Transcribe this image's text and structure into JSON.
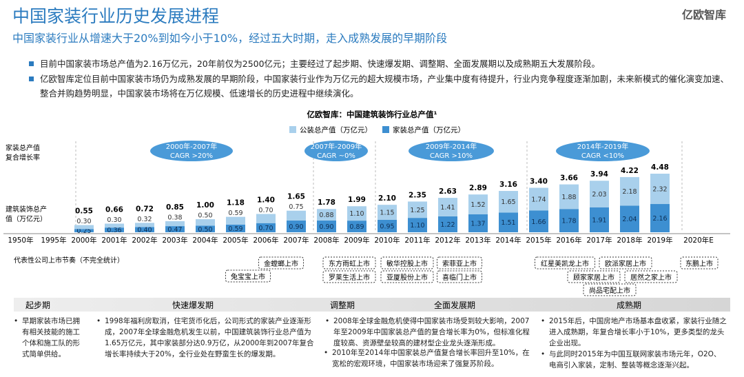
{
  "header": {
    "title": "中国家装行业历史发展进程",
    "subtitle": "中国家装行业从增速大于20%到如今小于10%，经过五大时期，走入成熟发展的早期阶段",
    "logo": "亿欧智库"
  },
  "bullets": [
    "目前中国家装市场总产值为2.16万亿元，20年前仅为2500亿元；主要经过了起步期、快速爆发期、调整期、全面发展期以及成熟期五大发展阶段。",
    "亿欧智库定位目前中国家装市场仍为成熟发展的早期阶段，中国家装行业作为万亿元的超大规模市场，产业集中度有待提升，行业内竞争程度逐渐加剧，未来新模式的催化演变加速、整合并购趋势明显，中国家装市场将在万亿规模、低速增长的历史进程中继续演化。"
  ],
  "chart_data": {
    "type": "stacked-bar",
    "title": "亿欧智库：中国建筑装饰行业总产值¹",
    "categories": [
      "1950年",
      "1995年",
      "2000年",
      "2001年",
      "2002年",
      "2003年",
      "2004年",
      "2005年",
      "2006年",
      "2007年",
      "2008年",
      "2009年",
      "2010年",
      "2011年",
      "2012年",
      "2013年",
      "2014年",
      "2015年",
      "2016年",
      "2017年",
      "2018年",
      "2019年",
      "2020年E"
    ],
    "series": [
      {
        "name": "公装总产值（万亿元）",
        "color": "#a9d0ec",
        "values": [
          null,
          null,
          0.3,
          0.3,
          0.32,
          0.38,
          0.5,
          0.59,
          0.7,
          0.75,
          0.88,
          1.1,
          1.15,
          1.25,
          1.41,
          1.52,
          1.65,
          1.74,
          1.88,
          2.03,
          2.18,
          2.32,
          null
        ],
        "value_labels": [
          null,
          null,
          "0.30",
          "0.30",
          "0.32",
          "0.38",
          "0.50",
          "0.59",
          "0.70",
          "0.75",
          "0.88",
          "1.10",
          "1.15",
          "1.25",
          "1.41",
          "1.52",
          "1.65",
          "1.74",
          "1.88",
          "2.03",
          "2.18",
          "2.32",
          null
        ]
      },
      {
        "name": "家装总产值（万亿元）",
        "color": "#3d8fd1",
        "values": [
          null,
          null,
          0.25,
          0.36,
          0.4,
          0.47,
          0.5,
          0.59,
          0.7,
          0.9,
          0.9,
          0.89,
          0.95,
          1.1,
          1.22,
          1.37,
          1.51,
          1.66,
          1.78,
          1.91,
          2.04,
          2.16,
          null
        ],
        "value_labels": [
          null,
          null,
          "0.25",
          "0.36",
          "0.40",
          "0.47",
          "0.50",
          "0.59",
          "0.70",
          "0.90",
          "0.90",
          "0.89",
          "0.95",
          "1.10",
          "1.22",
          "1.37",
          "1.51",
          "1.66",
          "1.78",
          "1.91",
          "2.04",
          "2.16",
          null
        ]
      }
    ],
    "totals": [
      null,
      null,
      "0.55",
      "0.66",
      "0.72",
      "0.85",
      "1.00",
      "1.18",
      "1.40",
      "1.65",
      "1.78",
      "1.99",
      "2.10",
      "2.35",
      "2.63",
      "2.89",
      "3.16",
      "3.40",
      "3.66",
      "3.94",
      "4.22",
      "4.48",
      null
    ],
    "row_labels": [
      "家装总产值复合增长率",
      "建筑装饰总产值（万亿元）"
    ],
    "cagr": [
      {
        "period": "2000年-2007年",
        "label": "CAGR >20%"
      },
      {
        "period": "2007年-2009年",
        "label": "CAGR ~0%"
      },
      {
        "period": "2009年-2014年",
        "label": "CAGR >10%"
      },
      {
        "period": "2014年-2019年",
        "label": "CAGR <10%"
      }
    ]
  },
  "listings": {
    "title": "代表性公司上市节奏（不完全统计）",
    "companies": [
      "金螳螂上市",
      "兔宝宝上市",
      "东方雨虹上市",
      "罗莱生活上市",
      "敏华控股上市",
      "亚厦股份上市",
      "索菲亚上市",
      "喜临门上市",
      "红星美凯龙上市",
      "顾家家居上市",
      "欧派家居上市",
      "居然之家上市",
      "尚品宅配上市",
      "东鹏上市"
    ]
  },
  "phases": [
    {
      "name": "起步期",
      "texts": [
        "早期家装市场已拥有相关技能的施工个体和施工队的形式简单供给。"
      ]
    },
    {
      "name": "快速爆发期",
      "texts": [
        "1998年福利房取消，住宅货币化后，公司形式的家装产业逐渐形成，2007年全球金融危机发生以前，中国建筑装饰行业总产值为1.65万亿元，其中家装部分达0.9万亿，从2000年到2007年复合增长率持续大于20%，全行业处在野蛮生长的爆发期。"
      ]
    },
    {
      "name": "调整期",
      "texts": [
        "2008年全球金融危机使得中国家装市场受到较大影响，2007年至2009年中国家装总产值的复合增长率为0%，但标准化程度较高、资源壁垒较高的建材型企业龙头逐渐形成。"
      ]
    },
    {
      "name": "全面发展期",
      "texts": [
        "2010年至2014年中国家装总产值复合增长率回升至10%，在宽松的宏观环境，中国家装市场迎来了强复苏阶段。"
      ]
    },
    {
      "name": "成熟期",
      "texts": [
        "2015年后，中国房地产市场基本盘收紧，家装行业随之进入成熟期，年复合增长率小于10%，更多类型的龙头企业出现。",
        "与此同时2015年为中国互联网家装市场元年，O2O、电商引入家装，定制、整装等概念逐渐兴起。"
      ]
    }
  ]
}
